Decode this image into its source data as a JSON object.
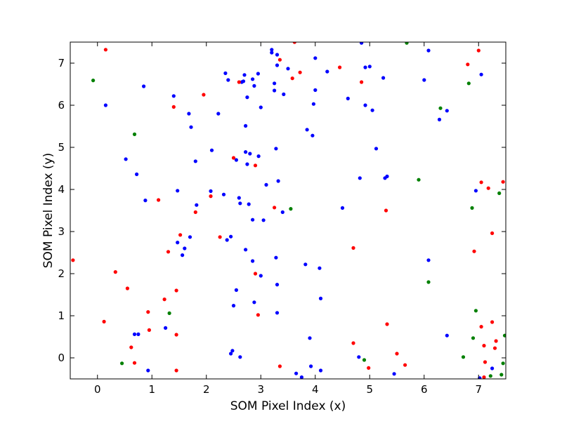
{
  "chart_data": {
    "type": "scatter",
    "title": "",
    "xlabel": "SOM Pixel Index (x)",
    "ylabel": "SOM Pixel Index (y)",
    "xlim": [
      -0.5,
      7.5
    ],
    "ylim": [
      -0.5,
      7.5
    ],
    "xticks": [
      0,
      1,
      2,
      3,
      4,
      5,
      6,
      7
    ],
    "yticks": [
      0,
      1,
      2,
      3,
      4,
      5,
      6,
      7
    ],
    "grid": false,
    "legend": "none",
    "series": [
      {
        "color": "#0000ff",
        "points": [
          [
            0.15,
            6.0
          ],
          [
            0.85,
            6.45
          ],
          [
            0.52,
            4.72
          ],
          [
            0.72,
            4.36
          ],
          [
            0.88,
            3.74
          ],
          [
            0.68,
            0.56
          ],
          [
            0.75,
            0.56
          ],
          [
            0.93,
            -0.3
          ],
          [
            1.25,
            0.71
          ],
          [
            1.4,
            6.22
          ],
          [
            1.68,
            5.8
          ],
          [
            1.72,
            5.48
          ],
          [
            1.8,
            4.67
          ],
          [
            1.47,
            3.97
          ],
          [
            1.82,
            3.63
          ],
          [
            1.7,
            2.87
          ],
          [
            1.47,
            2.74
          ],
          [
            1.6,
            2.6
          ],
          [
            1.56,
            2.44
          ],
          [
            2.1,
            4.93
          ],
          [
            2.08,
            3.96
          ],
          [
            2.22,
            5.8
          ],
          [
            2.35,
            6.76
          ],
          [
            2.4,
            6.6
          ],
          [
            2.32,
            3.88
          ],
          [
            2.45,
            2.88
          ],
          [
            2.38,
            2.8
          ],
          [
            2.45,
            0.1
          ],
          [
            2.48,
            0.17
          ],
          [
            2.5,
            1.24
          ],
          [
            2.55,
            1.61
          ],
          [
            2.62,
            0.02
          ],
          [
            2.55,
            4.7
          ],
          [
            2.6,
            3.8
          ],
          [
            2.62,
            3.67
          ],
          [
            2.65,
            6.55
          ],
          [
            2.7,
            6.72
          ],
          [
            2.68,
            6.57
          ],
          [
            2.75,
            6.19
          ],
          [
            2.85,
            6.62
          ],
          [
            2.88,
            6.46
          ],
          [
            2.95,
            6.75
          ],
          [
            2.72,
            5.51
          ],
          [
            2.72,
            4.89
          ],
          [
            2.8,
            4.85
          ],
          [
            2.75,
            4.6
          ],
          [
            2.96,
            4.79
          ],
          [
            2.78,
            3.65
          ],
          [
            2.85,
            3.28
          ],
          [
            2.72,
            2.57
          ],
          [
            2.85,
            2.3
          ],
          [
            2.88,
            1.32
          ],
          [
            3.0,
            5.95
          ],
          [
            3.0,
            1.95
          ],
          [
            3.05,
            3.27
          ],
          [
            3.1,
            4.11
          ],
          [
            3.2,
            7.25
          ],
          [
            3.2,
            7.32
          ],
          [
            3.3,
            7.2
          ],
          [
            3.25,
            6.52
          ],
          [
            3.25,
            6.35
          ],
          [
            3.3,
            6.95
          ],
          [
            3.42,
            6.26
          ],
          [
            3.5,
            6.87
          ],
          [
            3.28,
            4.97
          ],
          [
            3.32,
            4.2
          ],
          [
            3.4,
            3.46
          ],
          [
            3.28,
            2.38
          ],
          [
            3.3,
            1.74
          ],
          [
            3.3,
            1.07
          ],
          [
            3.65,
            -0.37
          ],
          [
            3.75,
            -0.46
          ],
          [
            3.82,
            2.22
          ],
          [
            3.85,
            5.42
          ],
          [
            3.9,
            0.47
          ],
          [
            3.92,
            -0.2
          ],
          [
            3.95,
            5.28
          ],
          [
            3.97,
            6.03
          ],
          [
            4.0,
            6.36
          ],
          [
            4.0,
            7.12
          ],
          [
            4.08,
            2.13
          ],
          [
            4.1,
            1.41
          ],
          [
            4.1,
            -0.3
          ],
          [
            4.22,
            6.8
          ],
          [
            4.5,
            3.56
          ],
          [
            4.6,
            6.16
          ],
          [
            4.8,
            0.02
          ],
          [
            4.82,
            4.27
          ],
          [
            4.85,
            7.48
          ],
          [
            4.92,
            6.9
          ],
          [
            4.92,
            6.0
          ],
          [
            5.0,
            6.92
          ],
          [
            5.05,
            5.88
          ],
          [
            5.12,
            4.97
          ],
          [
            5.25,
            6.65
          ],
          [
            5.28,
            4.27
          ],
          [
            5.32,
            4.31
          ],
          [
            5.45,
            -0.38
          ],
          [
            6.0,
            6.6
          ],
          [
            6.08,
            7.3
          ],
          [
            6.08,
            2.32
          ],
          [
            6.28,
            5.66
          ],
          [
            6.42,
            5.87
          ],
          [
            6.42,
            0.53
          ],
          [
            6.95,
            3.97
          ],
          [
            7.02,
            -0.48
          ],
          [
            7.05,
            6.73
          ],
          [
            7.25,
            -0.25
          ]
        ]
      },
      {
        "color": "#ff0000",
        "points": [
          [
            -0.45,
            2.32
          ],
          [
            0.15,
            7.32
          ],
          [
            0.12,
            0.86
          ],
          [
            0.33,
            2.04
          ],
          [
            0.55,
            1.65
          ],
          [
            0.62,
            0.25
          ],
          [
            0.68,
            -0.12
          ],
          [
            0.93,
            1.09
          ],
          [
            0.95,
            0.66
          ],
          [
            1.12,
            3.75
          ],
          [
            1.23,
            1.39
          ],
          [
            1.3,
            2.52
          ],
          [
            1.4,
            5.96
          ],
          [
            1.45,
            1.6
          ],
          [
            1.45,
            0.55
          ],
          [
            1.45,
            -0.3
          ],
          [
            1.52,
            2.92
          ],
          [
            1.8,
            3.46
          ],
          [
            1.95,
            6.25
          ],
          [
            2.08,
            3.84
          ],
          [
            2.25,
            2.87
          ],
          [
            2.5,
            4.75
          ],
          [
            2.6,
            6.55
          ],
          [
            2.9,
            4.57
          ],
          [
            2.9,
            2.0
          ],
          [
            2.95,
            1.02
          ],
          [
            3.25,
            3.57
          ],
          [
            3.35,
            7.08
          ],
          [
            3.35,
            -0.2
          ],
          [
            3.58,
            6.64
          ],
          [
            3.62,
            7.5
          ],
          [
            3.72,
            6.78
          ],
          [
            4.45,
            6.9
          ],
          [
            4.7,
            2.61
          ],
          [
            4.7,
            0.35
          ],
          [
            4.85,
            6.55
          ],
          [
            4.98,
            -0.24
          ],
          [
            5.3,
            3.5
          ],
          [
            5.32,
            0.8
          ],
          [
            5.5,
            0.1
          ],
          [
            5.65,
            -0.17
          ],
          [
            6.8,
            6.97
          ],
          [
            6.92,
            2.53
          ],
          [
            7.0,
            7.3
          ],
          [
            7.05,
            0.74
          ],
          [
            7.05,
            4.17
          ],
          [
            7.1,
            0.29
          ],
          [
            7.12,
            -0.1
          ],
          [
            7.1,
            -0.46
          ],
          [
            7.18,
            4.03
          ],
          [
            7.25,
            2.96
          ],
          [
            7.25,
            0.85
          ],
          [
            7.3,
            0.23
          ],
          [
            7.32,
            0.4
          ],
          [
            7.45,
            4.18
          ]
        ]
      },
      {
        "color": "#008000",
        "points": [
          [
            -0.08,
            6.59
          ],
          [
            0.68,
            5.31
          ],
          [
            0.45,
            -0.13
          ],
          [
            1.32,
            1.06
          ],
          [
            3.55,
            3.54
          ],
          [
            4.9,
            -0.05
          ],
          [
            5.68,
            7.48
          ],
          [
            5.9,
            4.23
          ],
          [
            6.08,
            1.8
          ],
          [
            6.3,
            5.93
          ],
          [
            6.72,
            0.02
          ],
          [
            6.82,
            6.52
          ],
          [
            6.88,
            3.56
          ],
          [
            6.9,
            0.47
          ],
          [
            6.95,
            1.12
          ],
          [
            7.22,
            -0.43
          ],
          [
            7.38,
            3.91
          ],
          [
            7.42,
            -0.4
          ],
          [
            7.45,
            -0.13
          ],
          [
            7.48,
            0.53
          ]
        ]
      }
    ]
  }
}
